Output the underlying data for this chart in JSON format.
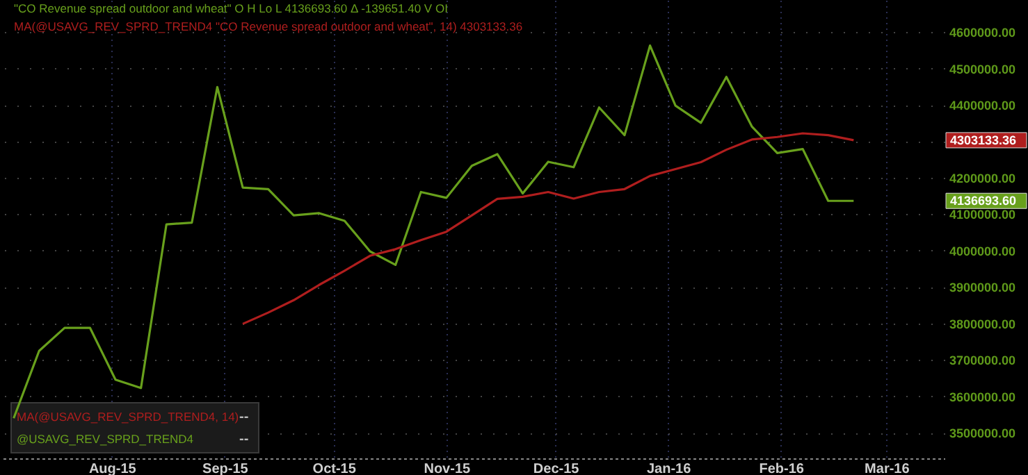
{
  "chart_data": {
    "type": "line",
    "title": "\"CO Revenue spread outdoor and wheat\"  O  H  Lo  L 4136693.60  Δ -139651.40  V  OI",
    "subtitle": "MA(@USAVG_REV_SPRD_TREND4 \"CO Revenue spread outdoor and wheat\", 14) 4303133.36",
    "x": [
      "2015-07-05",
      "2015-07-12",
      "2015-07-19",
      "2015-07-26",
      "2015-08-02",
      "2015-08-09",
      "2015-08-16",
      "2015-08-23",
      "2015-08-30",
      "2015-09-06",
      "2015-09-13",
      "2015-09-20",
      "2015-09-27",
      "2015-10-04",
      "2015-10-11",
      "2015-10-18",
      "2015-10-25",
      "2015-11-01",
      "2015-11-08",
      "2015-11-15",
      "2015-11-22",
      "2015-11-29",
      "2015-12-06",
      "2015-12-13",
      "2015-12-20",
      "2015-12-27",
      "2016-01-03",
      "2016-01-10",
      "2016-01-17",
      "2016-01-24",
      "2016-01-31",
      "2016-02-07",
      "2016-02-14",
      "2016-02-21"
    ],
    "series": [
      {
        "name": "MA(@USAVG_REV_SPRD_TREND4, 14)",
        "color": "#b01e1e",
        "values": [
          null,
          null,
          null,
          null,
          null,
          null,
          null,
          null,
          null,
          3799000,
          3830000,
          3864000,
          3906000,
          3945000,
          3986000,
          4004000,
          4029000,
          4052000,
          4097000,
          4142000,
          4148000,
          4161000,
          4143000,
          4161000,
          4169000,
          4205000,
          4224000,
          4243000,
          4277000,
          4305000,
          4312000,
          4322000,
          4317000,
          4303133.36
        ]
      },
      {
        "name": "@USAVG_REV_SPRD_TREND4",
        "color": "#68a01c",
        "values": [
          3540000,
          3725000,
          3788000,
          3788000,
          3646000,
          3623000,
          4072000,
          4077000,
          4449000,
          4173000,
          4169000,
          4097000,
          4103000,
          4082000,
          3998000,
          3961000,
          4161000,
          4145000,
          4233000,
          4265000,
          4157000,
          4244000,
          4229000,
          4393000,
          4317000,
          4563000,
          4398000,
          4351000,
          4477000,
          4341000,
          4268000,
          4279000,
          4136693.6,
          4136693.6
        ]
      }
    ],
    "xlim": [
      "2015-07-02",
      "2016-03-17"
    ],
    "xticks": [
      {
        "value": "2015-08-01",
        "label": "Aug-15"
      },
      {
        "value": "2015-09-01",
        "label": "Sep-15"
      },
      {
        "value": "2015-10-01",
        "label": "Oct-15"
      },
      {
        "value": "2015-11-01",
        "label": "Nov-15"
      },
      {
        "value": "2015-12-01",
        "label": "Dec-15"
      },
      {
        "value": "2016-01-01",
        "label": "Jan-16"
      },
      {
        "value": "2016-02-01",
        "label": "Feb-16"
      },
      {
        "value": "2016-03-01",
        "label": "Mar-16"
      }
    ],
    "ylim": [
      3430000,
      4688000
    ],
    "yticks": [
      {
        "value": 3500000,
        "label": "3500000.00"
      },
      {
        "value": 3600000,
        "label": "3600000.00"
      },
      {
        "value": 3700000,
        "label": "3700000.00"
      },
      {
        "value": 3800000,
        "label": "3800000.00"
      },
      {
        "value": 3900000,
        "label": "3900000.00"
      },
      {
        "value": 4000000,
        "label": "4000000.00"
      },
      {
        "value": 4100000,
        "label": "4100000.00"
      },
      {
        "value": 4200000,
        "label": "4200000.00"
      },
      {
        "value": 4300000,
        "label": null
      },
      {
        "value": 4400000,
        "label": "4400000.00"
      },
      {
        "value": 4500000,
        "label": "4500000.00"
      },
      {
        "value": 4600000,
        "label": "4600000.00"
      }
    ],
    "annotations": [
      "4303133.36",
      "4136693.60",
      "--",
      "--"
    ],
    "grid": true,
    "legend": "bottom left",
    "marker": "none",
    "line_style": "solid"
  }
}
